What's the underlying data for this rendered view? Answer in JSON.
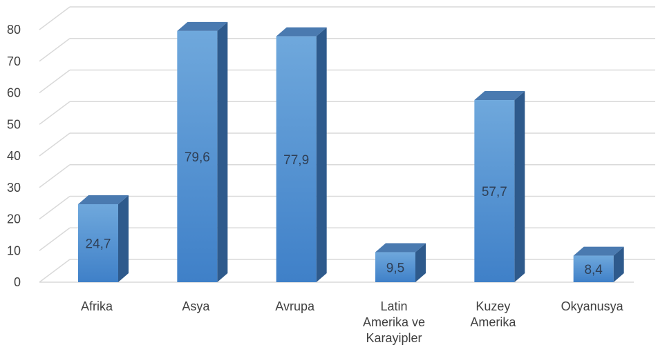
{
  "chart_data": {
    "type": "bar",
    "title": "",
    "xlabel": "",
    "ylabel": "",
    "categories": [
      [
        "Afrika"
      ],
      [
        "Asya"
      ],
      [
        "Avrupa"
      ],
      [
        "Latin",
        "Amerika ve",
        "Karayipler"
      ],
      [
        "Kuzey",
        "Amerika"
      ],
      [
        "Okyanusya"
      ]
    ],
    "values": [
      24.7,
      79.6,
      77.9,
      9.5,
      57.7,
      8.4
    ],
    "data_labels": [
      "24,7",
      "79,6",
      "77,9",
      "9,5",
      "57,7",
      "8,4"
    ],
    "ylim": [
      0,
      80
    ],
    "yticks": [
      "0",
      "10",
      "20",
      "30",
      "40",
      "50",
      "60",
      "70",
      "80"
    ],
    "grid": true,
    "style": "3d-column",
    "colors": {
      "bar_front": "#5b9bd5",
      "bar_top": "#4a7ab0",
      "bar_side": "#2e5a8c",
      "grid": "#d9d9d9",
      "text": "#404040"
    }
  }
}
